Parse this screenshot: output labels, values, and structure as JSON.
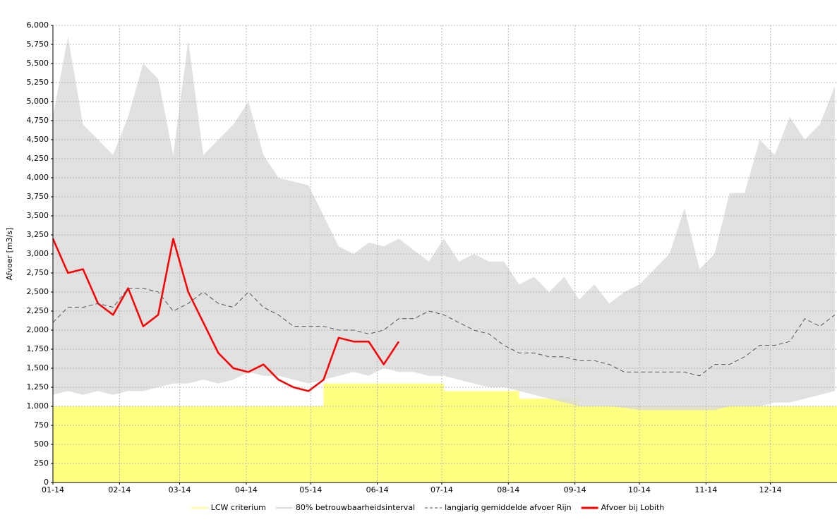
{
  "chart_data": {
    "type": "area-line",
    "y_label": "Afvoer [m3/s]",
    "xlim": [
      0,
      365
    ],
    "xticks": [
      {
        "value": 0,
        "label": "01-14"
      },
      {
        "value": 31,
        "label": "02-14"
      },
      {
        "value": 59,
        "label": "03-14"
      },
      {
        "value": 90,
        "label": "04-14"
      },
      {
        "value": 120,
        "label": "05-14"
      },
      {
        "value": 151,
        "label": "06-14"
      },
      {
        "value": 181,
        "label": "07-14"
      },
      {
        "value": 212,
        "label": "08-14"
      },
      {
        "value": 243,
        "label": "09-14"
      },
      {
        "value": 273,
        "label": "10-14"
      },
      {
        "value": 304,
        "label": "11-14"
      },
      {
        "value": 334,
        "label": "12-14"
      }
    ],
    "ylim": [
      0,
      6000
    ],
    "yticks": [
      0,
      250,
      500,
      750,
      {
        "value": 1000,
        "label": "1,000"
      },
      {
        "value": 1250,
        "label": "1,250"
      },
      {
        "value": 1500,
        "label": "1,500"
      },
      {
        "value": 1750,
        "label": "1,750"
      },
      {
        "value": 2000,
        "label": "2,000"
      },
      {
        "value": 2250,
        "label": "2,250"
      },
      {
        "value": 2500,
        "label": "2,500"
      },
      {
        "value": 2750,
        "label": "2,750"
      },
      {
        "value": 3000,
        "label": "3,000"
      },
      {
        "value": 3250,
        "label": "3,250"
      },
      {
        "value": 3500,
        "label": "3,500"
      },
      {
        "value": 3750,
        "label": "3,750"
      },
      {
        "value": 4000,
        "label": "4,000"
      },
      {
        "value": 4250,
        "label": "4,250"
      },
      {
        "value": 4500,
        "label": "4,500"
      },
      {
        "value": 4750,
        "label": "4,750"
      },
      {
        "value": 5000,
        "label": "5,000"
      },
      {
        "value": 5250,
        "label": "5,250"
      },
      {
        "value": 5500,
        "label": "5,500"
      },
      {
        "value": 5750,
        "label": "5,750"
      },
      {
        "value": 6000,
        "label": "6,000"
      }
    ],
    "grid": true,
    "legend": "bottom",
    "x": [
      0,
      7,
      14,
      21,
      28,
      35,
      42,
      49,
      56,
      63,
      70,
      77,
      84,
      91,
      98,
      105,
      112,
      119,
      126,
      133,
      140,
      147,
      154,
      161,
      168,
      175,
      182,
      189,
      196,
      203,
      210,
      217,
      224,
      231,
      238,
      245,
      252,
      259,
      266,
      273,
      280,
      287,
      294,
      301,
      308,
      315,
      322,
      329,
      336,
      343,
      350,
      357,
      364
    ],
    "series": [
      {
        "name": "LCW criterium",
        "kind": "step-area",
        "color": "#ffff80",
        "values": [
          1000,
          1000,
          1000,
          1000,
          1000,
          1000,
          1000,
          1000,
          1000,
          1000,
          1000,
          1000,
          1000,
          1000,
          1000,
          1000,
          1000,
          1000,
          1300,
          1300,
          1300,
          1300,
          1300,
          1300,
          1300,
          1300,
          1200,
          1200,
          1200,
          1200,
          1200,
          1100,
          1100,
          1100,
          1100,
          1000,
          1000,
          1000,
          1000,
          1000,
          1000,
          1000,
          1000,
          1000,
          1000,
          1000,
          1000,
          1000,
          1000,
          1000,
          1000,
          1000,
          1000
        ]
      },
      {
        "name": "80% betrouwbaarheidsinterval",
        "kind": "band",
        "color": "#dcdcdc",
        "values": [
          4800,
          5850,
          4700,
          4500,
          4300,
          4800,
          5500,
          5300,
          4300,
          5800,
          4300,
          4500,
          4700,
          5000,
          4300,
          4000,
          3950,
          3900,
          3500,
          3100,
          3000,
          3150,
          3100,
          3200,
          3050,
          2900,
          3200,
          2900,
          3000,
          2900,
          2900,
          2600,
          2700,
          2500,
          2700,
          2400,
          2600,
          2350,
          2500,
          2600,
          2800,
          3000,
          3600,
          2800,
          3000,
          3800,
          3800,
          4500,
          4300,
          4800,
          4500,
          4700,
          5200
        ],
        "lower": [
          1150,
          1200,
          1150,
          1200,
          1150,
          1200,
          1200,
          1250,
          1300,
          1300,
          1350,
          1300,
          1350,
          1450,
          1400,
          1400,
          1350,
          1300,
          1350,
          1400,
          1450,
          1400,
          1500,
          1450,
          1450,
          1400,
          1400,
          1350,
          1300,
          1250,
          1250,
          1200,
          1150,
          1100,
          1050,
          1000,
          1000,
          1000,
          980,
          950,
          950,
          950,
          950,
          950,
          950,
          1000,
          1000,
          1000,
          1050,
          1050,
          1100,
          1150,
          1200
        ]
      },
      {
        "name": "langjarig gemiddelde afvoer Rijn",
        "kind": "dashed",
        "color": "#555555",
        "values": [
          2100,
          2300,
          2300,
          2350,
          2300,
          2550,
          2550,
          2500,
          2250,
          2350,
          2500,
          2350,
          2300,
          2500,
          2300,
          2200,
          2050,
          2050,
          2050,
          2000,
          2000,
          1950,
          2000,
          2150,
          2150,
          2250,
          2200,
          2100,
          2000,
          1950,
          1800,
          1700,
          1700,
          1650,
          1650,
          1600,
          1600,
          1550,
          1450,
          1450,
          1450,
          1450,
          1450,
          1400,
          1550,
          1550,
          1650,
          1800,
          1800,
          1850,
          2150,
          2050,
          2200
        ]
      },
      {
        "name": "Afvoer bij Lobith",
        "kind": "line",
        "color": "#ff0000",
        "values": [
          3200,
          2750,
          2800,
          2350,
          2200,
          2550,
          2050,
          2200,
          3200,
          2500,
          2100,
          1700,
          1500,
          1450,
          1550,
          1350,
          1250,
          1200,
          1350,
          1900,
          1850,
          1850,
          1550,
          1850,
          null,
          null,
          null,
          null,
          null,
          null,
          null,
          null,
          null,
          null,
          null,
          null,
          null,
          null,
          null,
          null,
          null,
          null,
          null,
          null,
          null,
          null,
          null,
          null,
          null,
          null,
          null,
          null,
          null
        ]
      }
    ]
  }
}
